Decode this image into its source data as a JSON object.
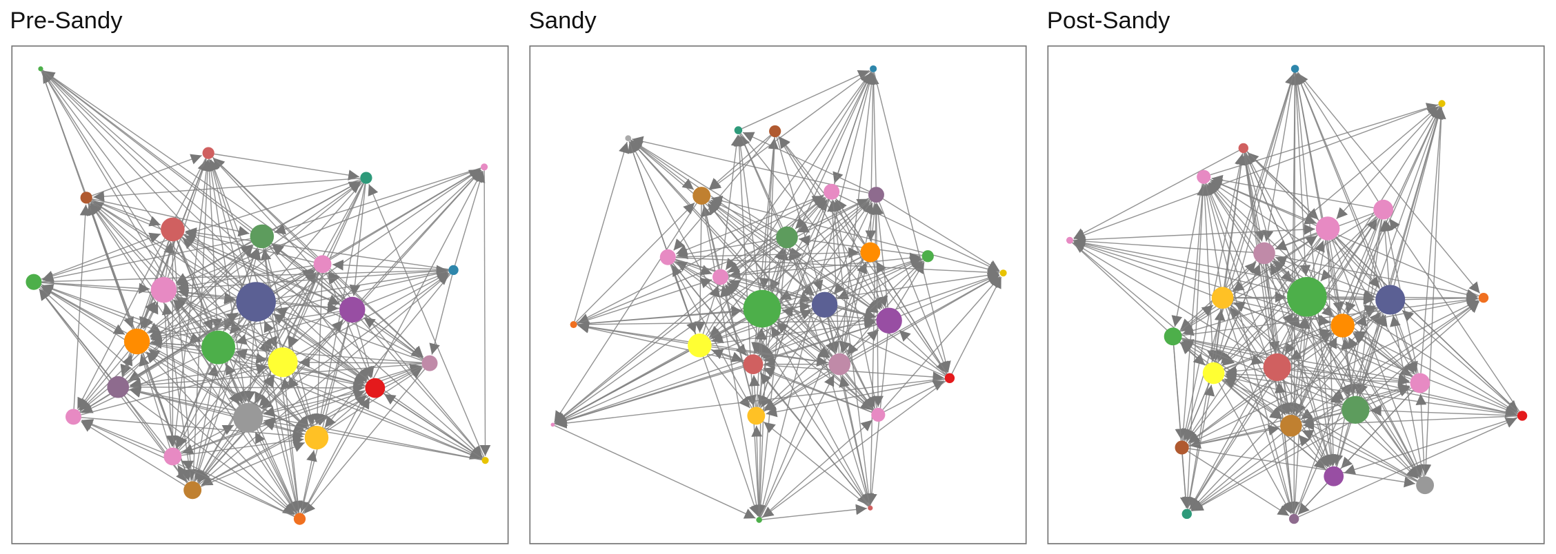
{
  "panels": [
    {
      "title": "Pre-Sandy"
    },
    {
      "title": "Sandy"
    },
    {
      "title": "Post-Sandy"
    }
  ]
}
